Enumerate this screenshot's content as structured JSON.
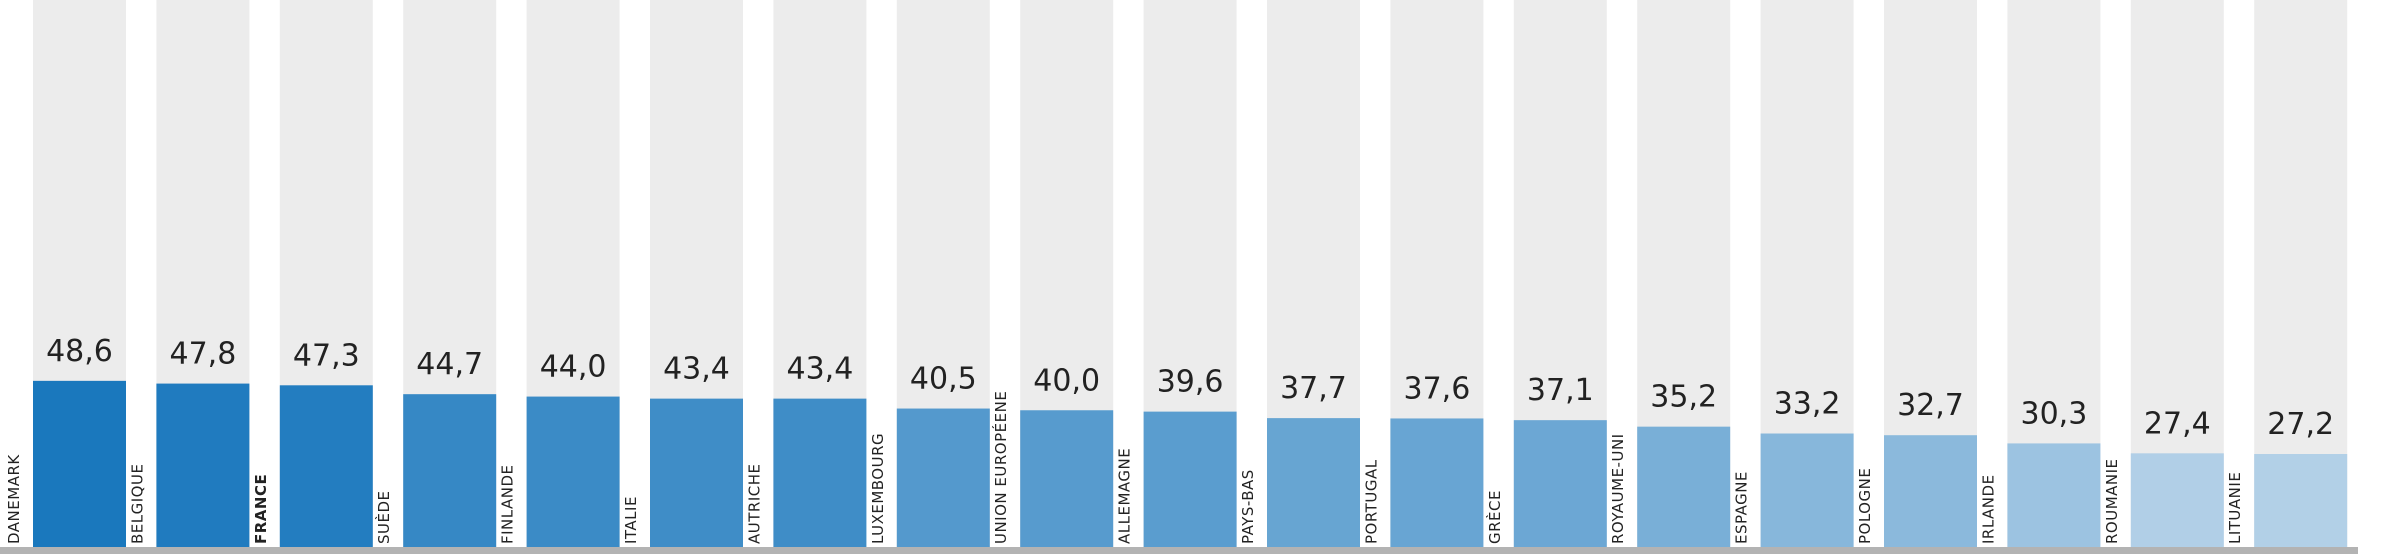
{
  "chart_data": {
    "type": "bar",
    "categories": [
      "DANEMARK",
      "BELGIQUE",
      "FRANCE",
      "SUÈDE",
      "FINLANDE",
      "ITALIE",
      "AUTRICHE",
      "LUXEMBOURG",
      "UNION EUROPÉENE",
      "ALLEMAGNE",
      "PAYS-BAS",
      "PORTUGAL",
      "GRÈCE",
      "ROYAUME-UNI",
      "ESPAGNE",
      "POLOGNE",
      "IRLANDE",
      "ROUMANIE",
      "LITUANIE"
    ],
    "values": [
      48.6,
      47.8,
      47.3,
      44.7,
      44.0,
      43.4,
      43.4,
      40.5,
      40.0,
      39.6,
      37.7,
      37.6,
      37.1,
      35.2,
      33.2,
      32.7,
      30.3,
      27.4,
      27.2
    ],
    "value_labels": [
      "48,6",
      "47,8",
      "47,3",
      "44,7",
      "44,0",
      "43,4",
      "43,4",
      "40,5",
      "40,0",
      "39,6",
      "37,7",
      "37,6",
      "37,1",
      "35,2",
      "33,2",
      "32,7",
      "30,3",
      "27,4",
      "27,2"
    ],
    "highlight_category": "FRANCE",
    "ylim": [
      0,
      160
    ],
    "grid": false,
    "title": "",
    "xlabel": "",
    "ylabel": "",
    "colors": {
      "background_bar": "#ececec",
      "baseline": "#b3b3b3",
      "bar_dark": "#1a78bd",
      "bar_light": "#b2d0e7"
    }
  }
}
